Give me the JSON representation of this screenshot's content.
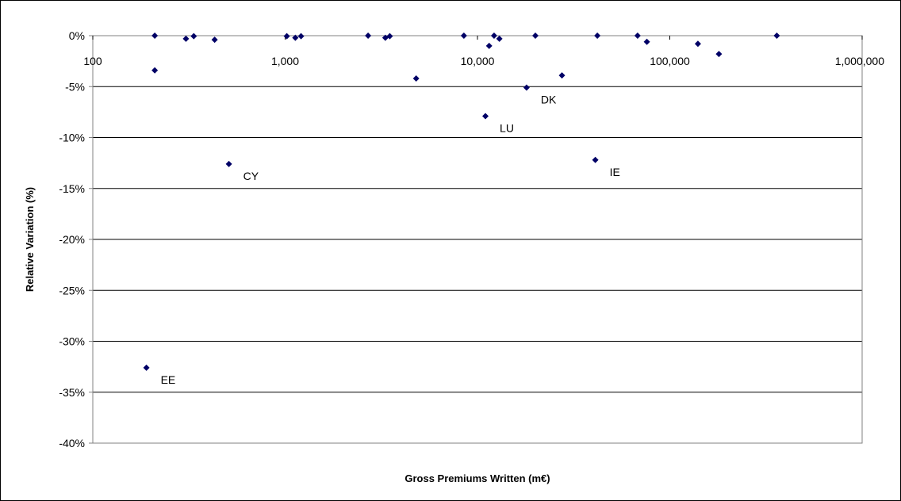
{
  "chart_data": {
    "type": "scatter",
    "title": "",
    "xlabel": "Gross Premiums Written (m€)",
    "ylabel": "Relative Variation (%)",
    "x_scale": "log",
    "xlim": [
      100,
      1000000
    ],
    "ylim": [
      -40,
      0
    ],
    "x_ticks": [
      {
        "value": 100,
        "label": "100"
      },
      {
        "value": 1000,
        "label": "1,000"
      },
      {
        "value": 10000,
        "label": "10,000"
      },
      {
        "value": 100000,
        "label": "100,000"
      },
      {
        "value": 1000000,
        "label": "1,000,000"
      }
    ],
    "y_ticks": [
      {
        "value": 0,
        "label": "0%"
      },
      {
        "value": -5,
        "label": "-5%"
      },
      {
        "value": -10,
        "label": "-10%"
      },
      {
        "value": -15,
        "label": "-15%"
      },
      {
        "value": -20,
        "label": "-20%"
      },
      {
        "value": -25,
        "label": "-25%"
      },
      {
        "value": -30,
        "label": "-30%"
      },
      {
        "value": -35,
        "label": "-35%"
      },
      {
        "value": -40,
        "label": "-40%"
      }
    ],
    "grid": {
      "horizontal": true,
      "vertical": false
    },
    "marker_color": "#000066",
    "points": [
      {
        "x": 210,
        "y": 0,
        "label": ""
      },
      {
        "x": 210,
        "y": -3.4,
        "label": ""
      },
      {
        "x": 190,
        "y": -32.6,
        "label": "EE"
      },
      {
        "x": 305,
        "y": -0.3,
        "label": ""
      },
      {
        "x": 335,
        "y": -0.05,
        "label": ""
      },
      {
        "x": 430,
        "y": -0.4,
        "label": ""
      },
      {
        "x": 510,
        "y": -12.6,
        "label": "CY"
      },
      {
        "x": 1020,
        "y": -0.05,
        "label": ""
      },
      {
        "x": 1130,
        "y": -0.2,
        "label": ""
      },
      {
        "x": 1210,
        "y": -0.05,
        "label": ""
      },
      {
        "x": 2700,
        "y": 0,
        "label": ""
      },
      {
        "x": 3320,
        "y": -0.2,
        "label": ""
      },
      {
        "x": 3500,
        "y": -0.05,
        "label": ""
      },
      {
        "x": 4800,
        "y": -4.2,
        "label": ""
      },
      {
        "x": 8500,
        "y": 0,
        "label": ""
      },
      {
        "x": 11000,
        "y": -7.9,
        "label": "LU"
      },
      {
        "x": 11500,
        "y": -1.0,
        "label": ""
      },
      {
        "x": 12200,
        "y": 0,
        "label": ""
      },
      {
        "x": 13000,
        "y": -0.3,
        "label": ""
      },
      {
        "x": 18000,
        "y": -5.1,
        "label": "DK"
      },
      {
        "x": 20000,
        "y": 0,
        "label": ""
      },
      {
        "x": 27500,
        "y": -3.9,
        "label": ""
      },
      {
        "x": 41000,
        "y": -12.2,
        "label": "IE"
      },
      {
        "x": 42000,
        "y": 0,
        "label": ""
      },
      {
        "x": 68000,
        "y": 0,
        "label": ""
      },
      {
        "x": 76000,
        "y": -0.6,
        "label": ""
      },
      {
        "x": 140000,
        "y": -0.8,
        "label": ""
      },
      {
        "x": 180000,
        "y": -1.8,
        "label": ""
      },
      {
        "x": 360000,
        "y": 0,
        "label": ""
      }
    ]
  }
}
